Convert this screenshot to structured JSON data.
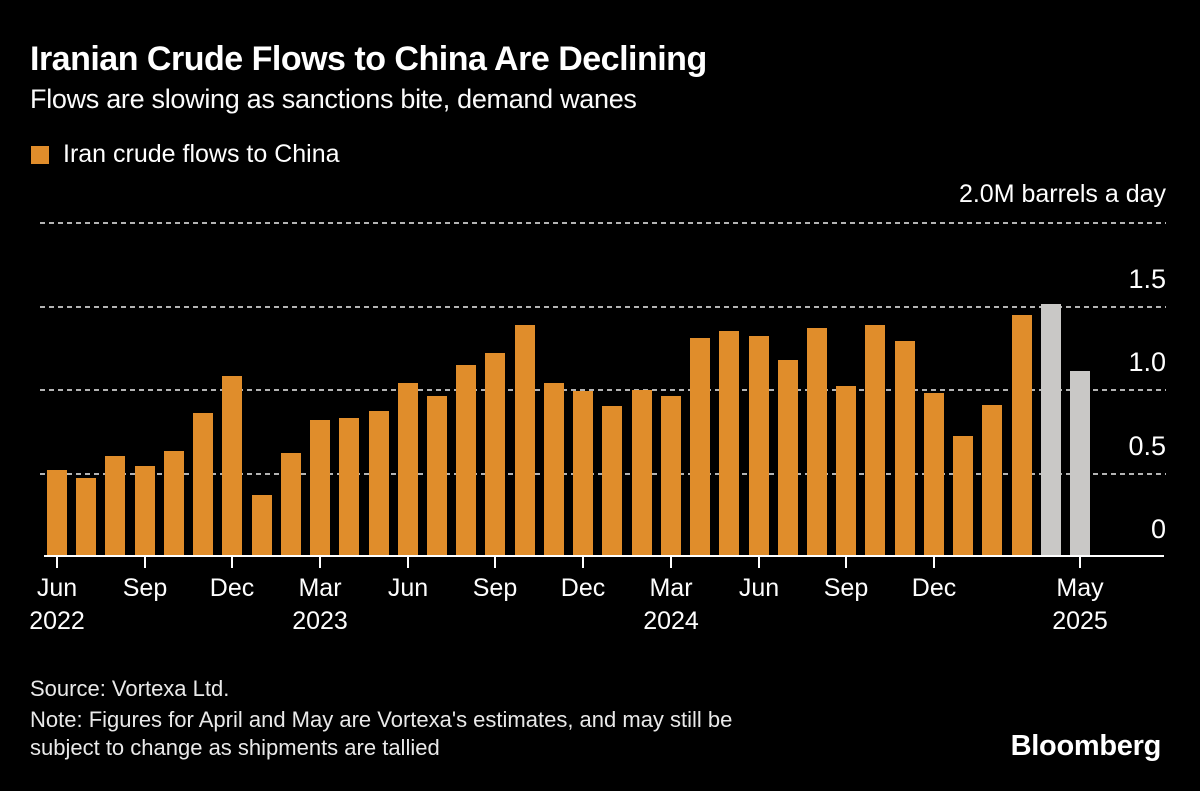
{
  "chart_data": {
    "type": "bar",
    "title": "Iranian Crude Flows to China Are Declining",
    "subtitle": "Flows are slowing as sanctions bite, demand wanes",
    "legend_label": "Iran crude flows to China",
    "legend_position": "top-left",
    "unit_label": "2.0M barrels a day",
    "xlabel": "",
    "ylabel": "",
    "ylim": [
      0,
      2.0
    ],
    "grid": "horizontal-dotted",
    "bar_color": "#E08D2B",
    "estimate_bar_color": "#C9C8C6",
    "categories": [
      "Jun 2022",
      "Jul 2022",
      "Aug 2022",
      "Sep 2022",
      "Oct 2022",
      "Nov 2022",
      "Dec 2022",
      "Jan 2023",
      "Feb 2023",
      "Mar 2023",
      "Apr 2023",
      "May 2023",
      "Jun 2023",
      "Jul 2023",
      "Aug 2023",
      "Sep 2023",
      "Oct 2023",
      "Nov 2023",
      "Dec 2023",
      "Jan 2024",
      "Feb 2024",
      "Mar 2024",
      "Apr 2024",
      "May 2024",
      "Jun 2024",
      "Jul 2024",
      "Aug 2024",
      "Sep 2024",
      "Oct 2024",
      "Nov 2024",
      "Dec 2024",
      "Jan 2025",
      "Feb 2025",
      "Mar 2025",
      "Apr 2025",
      "May 2025"
    ],
    "values": [
      0.51,
      0.46,
      0.59,
      0.53,
      0.62,
      0.85,
      1.07,
      0.36,
      0.61,
      0.81,
      0.82,
      0.86,
      1.03,
      0.95,
      1.14,
      1.21,
      1.38,
      1.03,
      0.98,
      0.89,
      0.99,
      0.95,
      1.3,
      1.34,
      1.31,
      1.17,
      1.36,
      1.01,
      1.38,
      1.28,
      0.97,
      0.71,
      0.9,
      1.44,
      1.5,
      1.1
    ],
    "estimated_categories": [
      "Apr 2025",
      "May 2025"
    ],
    "grid_values": [
      2.0,
      1.5,
      1.0,
      0.5
    ],
    "yticks": [
      {
        "value": 1.5,
        "label": "1.5"
      },
      {
        "value": 1.0,
        "label": "1.0"
      },
      {
        "value": 0.5,
        "label": "0.5"
      },
      {
        "value": 0.0,
        "label": "0"
      }
    ],
    "x_ticks": [
      {
        "index": 0,
        "month": "Jun",
        "year": "2022"
      },
      {
        "index": 3,
        "month": "Sep"
      },
      {
        "index": 6,
        "month": "Dec"
      },
      {
        "index": 9,
        "month": "Mar",
        "year": "2023"
      },
      {
        "index": 12,
        "month": "Jun"
      },
      {
        "index": 15,
        "month": "Sep"
      },
      {
        "index": 18,
        "month": "Dec"
      },
      {
        "index": 21,
        "month": "Mar",
        "year": "2024"
      },
      {
        "index": 24,
        "month": "Jun"
      },
      {
        "index": 27,
        "month": "Sep"
      },
      {
        "index": 30,
        "month": "Dec"
      },
      {
        "index": 35,
        "month": "May",
        "year": "2025"
      }
    ]
  },
  "footer": {
    "source": "Source: Vortexa Ltd.",
    "note_lines": [
      "Note: Figures for April and May are Vortexa's estimates, and may still be",
      "subject to change as shipments are tallied"
    ],
    "brand": "Bloomberg"
  }
}
